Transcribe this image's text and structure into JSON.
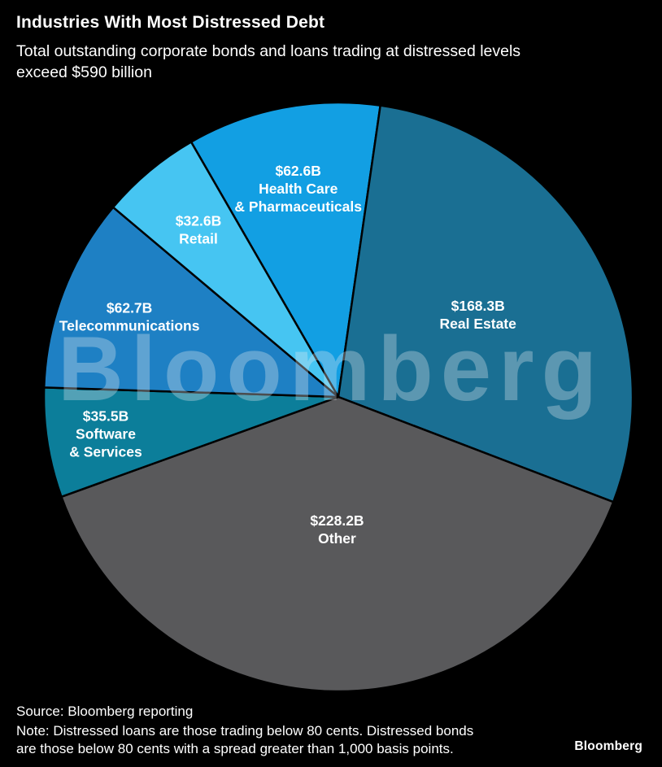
{
  "header": {
    "title": "Industries With Most Distressed Debt",
    "subtitle_lines": [
      "Total outstanding corporate bonds and loans trading at distressed levels",
      "exceed $590 billion"
    ]
  },
  "watermark": "Bloomberg",
  "chart_data": {
    "type": "pie",
    "title": "Industries With Most Distressed Debt",
    "subtitle": "Total outstanding corporate bonds and loans trading at distressed levels exceed $590 billion",
    "unit": "USD billions",
    "total": 589.9,
    "start_angle_deg": -30,
    "legend": "labels drawn inside slices",
    "slices": [
      {
        "id": "health-care",
        "label": "Health Care & Pharmaceuticals",
        "value": 62.6,
        "value_label": "$62.6B",
        "name_lines": [
          "Health Care",
          "& Pharmaceuticals"
        ],
        "color": "#129fe3",
        "label_r": 0.72
      },
      {
        "id": "real-estate",
        "label": "Real Estate",
        "value": 168.3,
        "value_label": "$168.3B",
        "name_lines": [
          "Real Estate"
        ],
        "color": "#1a6f93",
        "label_r": 0.55
      },
      {
        "id": "other",
        "label": "Other",
        "value": 228.2,
        "value_label": "$228.2B",
        "name_lines": [
          "Other"
        ],
        "color": "#59595b",
        "label_r": 0.45
      },
      {
        "id": "software-services",
        "label": "Software & Services",
        "value": 35.5,
        "value_label": "$35.5B",
        "name_lines": [
          "Software",
          "& Services"
        ],
        "color": "#0c7e9a",
        "label_r": 0.8
      },
      {
        "id": "telecommunications",
        "label": "Telecommunications",
        "value": 62.7,
        "value_label": "$62.7B",
        "name_lines": [
          "Telecommunications"
        ],
        "color": "#1e80c4",
        "label_r": 0.76
      },
      {
        "id": "retail",
        "label": "Retail",
        "value": 32.6,
        "value_label": "$32.6B",
        "name_lines": [
          "Retail"
        ],
        "color": "#46c5f2",
        "label_r": 0.74
      }
    ]
  },
  "footer": {
    "source": "Source: Bloomberg reporting",
    "note_lines": [
      "Note: Distressed loans are those trading below 80 cents. Distressed bonds",
      "are those below 80 cents with a spread greater than 1,000 basis points."
    ],
    "logo": "Bloomberg"
  }
}
